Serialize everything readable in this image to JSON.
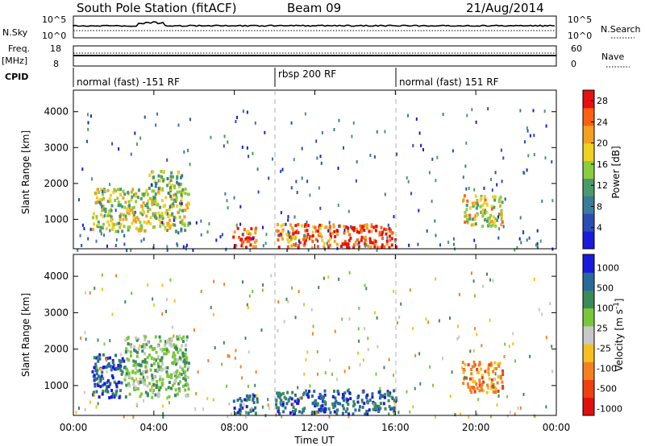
{
  "header": {
    "station": "South Pole Station (fitACF)",
    "beam": "Beam 09",
    "date": "21/Aug/2014"
  },
  "strip_labels": {
    "nsky": "N.Sky",
    "nsky_top": "10^5",
    "nsky_bottom": "10^0",
    "nsearch": "N.Search",
    "nsearch_top": "10^5",
    "nsearch_bottom": "10^0",
    "freq": "Freq.",
    "freq_unit": "[MHz]",
    "freq_top": "18",
    "freq_bottom": "8",
    "nave": "Nave",
    "nave_top": "60",
    "nave_bottom": "0",
    "cpid": "CPID"
  },
  "cpid_segments": [
    {
      "label": "normal (fast) -151 RF",
      "start_hour": 0,
      "end_hour": 10
    },
    {
      "label": "rbsp 200 RF",
      "start_hour": 10,
      "end_hour": 16
    },
    {
      "label": "normal (fast) 151 RF",
      "start_hour": 16,
      "end_hour": 24
    }
  ],
  "chart_data": [
    {
      "type": "heatmap",
      "panel": "power",
      "ylabel": "Slant Range [km]",
      "xlabel": "Time UT",
      "x_ticks": [
        "00:00",
        "04:00",
        "08:00",
        "12:00",
        "16:00",
        "20:00",
        "00:00"
      ],
      "x_range_hours": [
        0,
        24
      ],
      "y_ticks": [
        1000,
        2000,
        3000,
        4000
      ],
      "ylim": [
        180,
        4600
      ],
      "colorbar": {
        "label": "Power [dB]",
        "ticks": [
          4,
          8,
          12,
          16,
          20,
          24,
          28
        ],
        "range": [
          0,
          30
        ]
      },
      "echo_regions": [
        {
          "t0": 0.9,
          "t1": 5.7,
          "r0": 700,
          "r1": 1900,
          "level": 0.55
        },
        {
          "t0": 3.7,
          "t1": 5.4,
          "r0": 1900,
          "r1": 2400,
          "level": 0.45
        },
        {
          "t0": 7.9,
          "t1": 9.1,
          "r0": 250,
          "r1": 800,
          "level": 0.9
        },
        {
          "t0": 10.0,
          "t1": 12.8,
          "r0": 250,
          "r1": 900,
          "level": 0.85
        },
        {
          "t0": 12.8,
          "t1": 16.0,
          "r0": 250,
          "r1": 900,
          "level": 0.95
        },
        {
          "t0": 19.3,
          "t1": 21.3,
          "r0": 850,
          "r1": 1700,
          "level": 0.6
        }
      ]
    },
    {
      "type": "heatmap",
      "panel": "velocity",
      "ylabel": "Slant Range [km]",
      "xlabel": "Time UT",
      "x_ticks": [
        "00:00",
        "04:00",
        "08:00",
        "12:00",
        "16:00",
        "20:00",
        "00:00"
      ],
      "x_range_hours": [
        0,
        24
      ],
      "y_ticks": [
        1000,
        2000,
        3000,
        4000
      ],
      "ylim": [
        180,
        4600
      ],
      "colorbar": {
        "label": "Velocity [m s^-1]",
        "ticks": [
          "1000",
          "500",
          "100",
          "25",
          "-25",
          "-100",
          "-500",
          "-1000"
        ]
      },
      "echo_regions": [
        {
          "t0": 0.9,
          "t1": 2.5,
          "r0": 700,
          "r1": 1900,
          "vel": "500"
        },
        {
          "t0": 2.5,
          "t1": 5.7,
          "r0": 700,
          "r1": 2400,
          "vel": "100"
        },
        {
          "t0": 7.9,
          "t1": 9.1,
          "r0": 250,
          "r1": 800,
          "vel": "500"
        },
        {
          "t0": 10.0,
          "t1": 16.0,
          "r0": 250,
          "r1": 900,
          "vel": "500"
        },
        {
          "t0": 19.3,
          "t1": 21.3,
          "r0": 850,
          "r1": 1700,
          "vel": "-100"
        }
      ]
    }
  ],
  "colors": {
    "power_scale": [
      "#1a1adc",
      "#2a4fb4",
      "#3a7a9a",
      "#4a9a6a",
      "#8acd3e",
      "#f0d020",
      "#f5a020",
      "#ff6010",
      "#e81010"
    ],
    "velocity_scale": [
      "#1a1adc",
      "#2a6a9a",
      "#3a8a5a",
      "#7ac83a",
      "#c8c8c8",
      "#f5c020",
      "#f58020",
      "#ee4010",
      "#e01010"
    ],
    "axis": "#000000",
    "dashed_boundary": "#b0b0b0"
  }
}
